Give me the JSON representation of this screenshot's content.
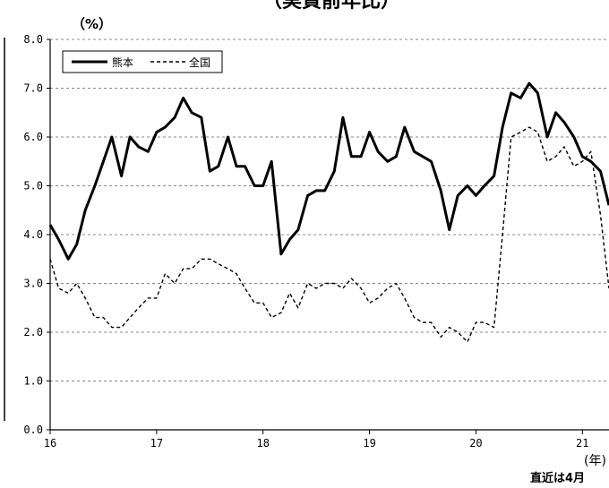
{
  "chart_data": {
    "type": "line",
    "title": "（実質前年比）",
    "y_unit_label": "（%）",
    "x_unit_label": "(年)",
    "footnote": "直近は4月",
    "ylim": [
      0,
      8
    ],
    "y_ticks": [
      "0.0",
      "1.0",
      "2.0",
      "3.0",
      "4.0",
      "5.0",
      "6.0",
      "7.0",
      "8.0"
    ],
    "x_range": [
      16.0,
      21.25
    ],
    "x_ticks": [
      {
        "value": 16,
        "label": "16"
      },
      {
        "value": 17,
        "label": "17"
      },
      {
        "value": 18,
        "label": "18"
      },
      {
        "value": 19,
        "label": "19"
      },
      {
        "value": 20,
        "label": "20"
      },
      {
        "value": 21,
        "label": "21"
      }
    ],
    "grid": true,
    "legend_position": "top-left",
    "x": [
      16.0,
      16.08,
      16.17,
      16.25,
      16.33,
      16.42,
      16.5,
      16.58,
      16.67,
      16.75,
      16.83,
      16.92,
      17.0,
      17.08,
      17.17,
      17.25,
      17.33,
      17.42,
      17.5,
      17.58,
      17.67,
      17.75,
      17.83,
      17.92,
      18.0,
      18.08,
      18.17,
      18.25,
      18.33,
      18.42,
      18.5,
      18.58,
      18.67,
      18.75,
      18.83,
      18.92,
      19.0,
      19.08,
      19.17,
      19.25,
      19.33,
      19.42,
      19.5,
      19.58,
      19.67,
      19.75,
      19.83,
      19.92,
      20.0,
      20.08,
      20.17,
      20.25,
      20.33,
      20.42,
      20.5,
      20.58,
      20.67,
      20.75,
      20.83,
      20.92,
      21.0,
      21.08,
      21.17,
      21.25
    ],
    "series": [
      {
        "name": "熊本",
        "style": "solid",
        "color": "#000000",
        "values": [
          4.2,
          3.9,
          3.5,
          3.8,
          4.5,
          5.0,
          5.5,
          6.0,
          5.2,
          6.0,
          5.8,
          5.7,
          6.1,
          6.2,
          6.4,
          6.8,
          6.5,
          6.4,
          5.3,
          5.4,
          6.0,
          5.4,
          5.4,
          5.0,
          5.0,
          5.5,
          3.6,
          3.9,
          4.1,
          4.8,
          4.9,
          4.9,
          5.3,
          6.4,
          5.6,
          5.6,
          6.1,
          5.7,
          5.5,
          5.6,
          6.2,
          5.7,
          5.6,
          5.5,
          4.9,
          4.1,
          4.8,
          5.0,
          4.8,
          5.0,
          5.2,
          6.2,
          6.9,
          6.8,
          7.1,
          6.9,
          6.0,
          6.5,
          6.3,
          6.0,
          5.6,
          5.5,
          5.3,
          4.6
        ]
      },
      {
        "name": "全国",
        "style": "dashed",
        "color": "#000000",
        "values": [
          3.5,
          2.9,
          2.8,
          3.0,
          2.7,
          2.3,
          2.3,
          2.1,
          2.1,
          2.3,
          2.5,
          2.7,
          2.7,
          3.2,
          3.0,
          3.3,
          3.3,
          3.5,
          3.5,
          3.4,
          3.3,
          3.2,
          2.9,
          2.6,
          2.6,
          2.3,
          2.4,
          2.8,
          2.5,
          3.0,
          2.9,
          3.0,
          3.0,
          2.9,
          3.1,
          2.9,
          2.6,
          2.7,
          2.9,
          3.0,
          2.7,
          2.3,
          2.2,
          2.2,
          1.9,
          2.1,
          2.0,
          1.8,
          2.2,
          2.2,
          2.1,
          4.0,
          6.0,
          6.1,
          6.2,
          6.1,
          5.5,
          5.6,
          5.8,
          5.4,
          5.5,
          5.7,
          4.4,
          2.9
        ]
      }
    ]
  }
}
